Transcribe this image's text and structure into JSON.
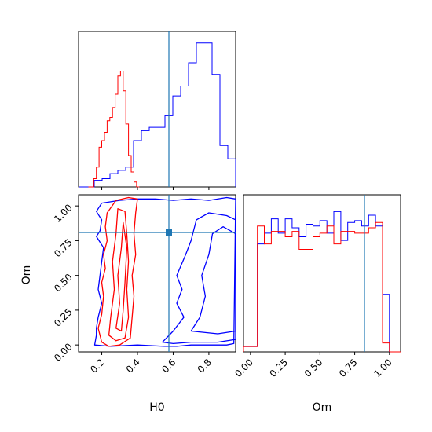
{
  "colors": {
    "series_a": "#0000ff",
    "series_b": "#ff0000",
    "truth": "#1f77b4",
    "axes": "#000000"
  },
  "chart_data": [
    {
      "type": "histogram",
      "panel": "H0 marginal",
      "xlabel": "",
      "xlim": [
        0.07,
        0.95
      ],
      "xticks": [
        0.2,
        0.4,
        0.6,
        0.8
      ],
      "yticks": [],
      "truth_x": 0.59,
      "series": [
        {
          "color": "blue",
          "bin_edges": [
            0.07,
            0.114,
            0.158,
            0.202,
            0.246,
            0.29,
            0.334,
            0.378,
            0.422,
            0.466,
            0.51,
            0.554,
            0.598,
            0.642,
            0.686,
            0.73,
            0.774,
            0.818,
            0.862,
            0.906,
            0.95
          ],
          "values": [
            0,
            0,
            4,
            5,
            8,
            10,
            12,
            28,
            34,
            36,
            36,
            43,
            55,
            61,
            75,
            87,
            87,
            68,
            25,
            17
          ]
        },
        {
          "color": "red",
          "bin_edges": [
            0.125,
            0.14,
            0.155,
            0.17,
            0.185,
            0.2,
            0.215,
            0.23,
            0.245,
            0.26,
            0.275,
            0.29,
            0.305,
            0.32,
            0.335,
            0.35,
            0.365,
            0.38,
            0.395,
            0.41
          ],
          "values": [
            0,
            0,
            5,
            12,
            24,
            28,
            33,
            40,
            42,
            48,
            56,
            67,
            70,
            58,
            38,
            19,
            9,
            3,
            0
          ]
        }
      ]
    },
    {
      "type": "contour",
      "panel": "H0 vs Om",
      "xlabel": "H0",
      "ylabel": "Om",
      "xlim": [
        0.07,
        0.95
      ],
      "ylim": [
        -0.05,
        1.08
      ],
      "xticks": [
        "0.2",
        "0.4",
        "0.6",
        "0.8"
      ],
      "yticks": [
        "0.00",
        "0.25",
        "0.50",
        "0.75",
        "1.00"
      ],
      "truth_point": [
        0.59,
        0.85
      ],
      "series": [
        {
          "color": "blue",
          "contours": [
            [
              [
                0.17,
                0.07
              ],
              [
                0.16,
                0.0
              ],
              [
                0.25,
                -0.01
              ],
              [
                0.4,
                0.0
              ],
              [
                0.55,
                -0.01
              ],
              [
                0.62,
                -0.01
              ],
              [
                0.7,
                0.0
              ],
              [
                0.8,
                0.0
              ],
              [
                0.9,
                0.0
              ],
              [
                0.94,
                0.01
              ],
              [
                0.95,
                1.05
              ],
              [
                0.9,
                1.06
              ],
              [
                0.8,
                1.04
              ],
              [
                0.7,
                1.05
              ],
              [
                0.6,
                1.04
              ],
              [
                0.5,
                1.05
              ],
              [
                0.4,
                1.05
              ],
              [
                0.3,
                1.04
              ],
              [
                0.2,
                1.02
              ],
              [
                0.17,
                0.96
              ],
              [
                0.2,
                0.9
              ],
              [
                0.19,
                0.82
              ],
              [
                0.17,
                0.78
              ],
              [
                0.21,
                0.7
              ],
              [
                0.2,
                0.6
              ],
              [
                0.19,
                0.5
              ],
              [
                0.18,
                0.4
              ],
              [
                0.2,
                0.3
              ],
              [
                0.18,
                0.2
              ],
              [
                0.17,
                0.12
              ]
            ],
            [
              [
                0.54,
                0.02
              ],
              [
                0.6,
                0.1
              ],
              [
                0.66,
                0.2
              ],
              [
                0.62,
                0.3
              ],
              [
                0.65,
                0.4
              ],
              [
                0.62,
                0.5
              ],
              [
                0.67,
                0.65
              ],
              [
                0.7,
                0.75
              ],
              [
                0.73,
                0.9
              ],
              [
                0.8,
                0.95
              ],
              [
                0.9,
                0.93
              ],
              [
                0.95,
                0.9
              ],
              [
                0.95,
                0.04
              ],
              [
                0.85,
                0.02
              ],
              [
                0.7,
                0.02
              ],
              [
                0.6,
                0.01
              ]
            ],
            [
              [
                0.7,
                0.1
              ],
              [
                0.75,
                0.2
              ],
              [
                0.78,
                0.35
              ],
              [
                0.76,
                0.5
              ],
              [
                0.8,
                0.65
              ],
              [
                0.82,
                0.8
              ],
              [
                0.88,
                0.85
              ],
              [
                0.95,
                0.8
              ],
              [
                0.95,
                0.1
              ],
              [
                0.85,
                0.08
              ]
            ]
          ]
        },
        {
          "color": "red",
          "contours": [
            [
              [
                0.2,
                0.02
              ],
              [
                0.18,
                0.12
              ],
              [
                0.2,
                0.22
              ],
              [
                0.21,
                0.35
              ],
              [
                0.2,
                0.45
              ],
              [
                0.22,
                0.55
              ],
              [
                0.21,
                0.65
              ],
              [
                0.23,
                0.75
              ],
              [
                0.22,
                0.85
              ],
              [
                0.23,
                0.95
              ],
              [
                0.28,
                1.04
              ],
              [
                0.35,
                1.06
              ],
              [
                0.4,
                1.05
              ],
              [
                0.39,
                0.95
              ],
              [
                0.38,
                0.8
              ],
              [
                0.39,
                0.65
              ],
              [
                0.37,
                0.5
              ],
              [
                0.38,
                0.35
              ],
              [
                0.37,
                0.2
              ],
              [
                0.36,
                0.05
              ],
              [
                0.3,
                0.0
              ],
              [
                0.24,
                -0.01
              ]
            ],
            [
              [
                0.24,
                0.07
              ],
              [
                0.25,
                0.2
              ],
              [
                0.27,
                0.4
              ],
              [
                0.26,
                0.6
              ],
              [
                0.28,
                0.8
              ],
              [
                0.29,
                0.98
              ],
              [
                0.33,
                0.96
              ],
              [
                0.34,
                0.8
              ],
              [
                0.35,
                0.6
              ],
              [
                0.34,
                0.4
              ],
              [
                0.35,
                0.2
              ],
              [
                0.33,
                0.05
              ],
              [
                0.28,
                0.03
              ]
            ],
            [
              [
                0.28,
                0.12
              ],
              [
                0.3,
                0.3
              ],
              [
                0.29,
                0.5
              ],
              [
                0.31,
                0.7
              ],
              [
                0.32,
                0.88
              ],
              [
                0.34,
                0.7
              ],
              [
                0.33,
                0.45
              ],
              [
                0.32,
                0.25
              ],
              [
                0.31,
                0.1
              ]
            ]
          ]
        }
      ]
    },
    {
      "type": "histogram",
      "panel": "Om marginal",
      "xlabel": "Om",
      "xlim": [
        -0.05,
        1.08
      ],
      "xticks": [
        "0.00",
        "0.25",
        "0.50",
        "0.75",
        "1.00"
      ],
      "yticks": [],
      "truth_x": 0.85,
      "series": [
        {
          "color": "blue",
          "bin_edges": [
            -0.05,
            0.0,
            0.05,
            0.1,
            0.15,
            0.2,
            0.25,
            0.3,
            0.35,
            0.4,
            0.45,
            0.5,
            0.55,
            0.6,
            0.65,
            0.7,
            0.75,
            0.8,
            0.85,
            0.9,
            0.95,
            1.0,
            1.05,
            1.08
          ],
          "values": [
            3,
            3,
            60,
            66,
            74,
            66,
            74,
            69,
            64,
            71,
            70,
            73,
            66,
            78,
            62,
            72,
            73,
            70,
            76,
            70,
            32,
            0,
            0
          ]
        },
        {
          "color": "red",
          "bin_edges": [
            -0.05,
            0.0,
            0.05,
            0.1,
            0.15,
            0.2,
            0.25,
            0.3,
            0.35,
            0.4,
            0.45,
            0.5,
            0.55,
            0.6,
            0.65,
            0.7,
            0.75,
            0.8,
            0.85,
            0.9,
            0.95,
            1.0,
            1.05,
            1.08
          ],
          "values": [
            3,
            3,
            70,
            60,
            67,
            67,
            64,
            67,
            57,
            57,
            64,
            66,
            70,
            60,
            67,
            67,
            66,
            66,
            69,
            72,
            5,
            0,
            0
          ]
        }
      ]
    }
  ]
}
